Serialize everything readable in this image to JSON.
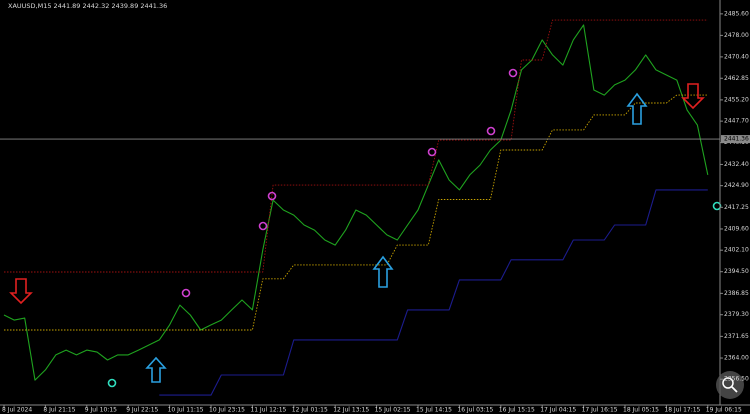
{
  "chart_data": {
    "type": "line",
    "title": "XAUUSD,M15  2441.89 2442.32 2439.89 2441.36",
    "current_price": 2441.36,
    "categories": [
      "8 Jul 2024",
      null,
      null,
      null,
      "8 Jul 21:15",
      null,
      null,
      null,
      "9 Jul 10:15",
      null,
      null,
      null,
      "9 Jul 22:15",
      null,
      null,
      null,
      "10 Jul 11:15",
      null,
      null,
      null,
      "10 Jul 23:15",
      null,
      null,
      null,
      "11 Jul 12:15",
      null,
      null,
      null,
      "12 Jul 01:15",
      null,
      null,
      null,
      "12 Jul 13:15",
      null,
      null,
      null,
      "15 Jul 02:15",
      null,
      null,
      null,
      "15 Jul 14:15",
      null,
      null,
      null,
      "16 Jul 03:15",
      null,
      null,
      null,
      "16 Jul 15:15",
      null,
      null,
      null,
      "17 Jul 04:15",
      null,
      null,
      null,
      "17 Jul 16:15",
      null,
      null,
      null,
      "18 Jul 05:15",
      null,
      null,
      null,
      "18 Jul 17:15",
      null,
      null,
      null,
      "19 Jul 06:15"
    ],
    "series": [
      {
        "color": "#1fa31f",
        "style": "solid",
        "values": [
          2379.2,
          2377.4,
          2378.1,
          2356.2,
          2359.8,
          2365.1,
          2366.8,
          2365.1,
          2366.8,
          2366.1,
          2363.3,
          2365.1,
          2365.1,
          2366.8,
          2368.6,
          2370.4,
          2375.7,
          2382.7,
          2379.2,
          2373.9,
          2375.7,
          2377.4,
          2381.0,
          2384.5,
          2381.0,
          2402.2,
          2419.8,
          2416.3,
          2414.5,
          2411.0,
          2409.2,
          2405.7,
          2403.9,
          2409.2,
          2416.3,
          2414.5,
          2411.0,
          2407.5,
          2405.7,
          2411.0,
          2416.3,
          2425.1,
          2434.0,
          2426.9,
          2423.4,
          2428.7,
          2432.2,
          2437.5,
          2441.0,
          2451.6,
          2465.8,
          2469.3,
          2476.4,
          2471.1,
          2467.5,
          2476.4,
          2481.7,
          2458.7,
          2456.9,
          2460.5,
          2462.2,
          2465.8,
          2471.1,
          2465.8,
          2464.0,
          2462.2,
          2451.6,
          2446.3,
          2428.7
        ]
      },
      {
        "color": "#a01010",
        "style": "dotted",
        "values": [
          2394.4,
          2394.4,
          2394.4,
          2394.4,
          2394.4,
          2394.4,
          2394.4,
          2394.4,
          2394.4,
          2394.4,
          2394.4,
          2394.4,
          2394.4,
          2394.4,
          2394.4,
          2394.4,
          2394.4,
          2394.4,
          2394.4,
          2394.4,
          2394.4,
          2394.4,
          2394.4,
          2394.4,
          2394.4,
          2394.4,
          2425.1,
          2425.1,
          2425.1,
          2425.1,
          2425.1,
          2425.1,
          2425.1,
          2425.1,
          2425.1,
          2425.1,
          2425.1,
          2425.1,
          2425.1,
          2425.1,
          2425.1,
          2425.1,
          2441.0,
          2441.0,
          2441.0,
          2441.0,
          2441.0,
          2441.0,
          2441.0,
          2441.0,
          2469.3,
          2469.3,
          2469.3,
          2483.4,
          2483.4,
          2483.4,
          2483.4,
          2483.4,
          2483.4,
          2483.4,
          2483.4,
          2483.4,
          2483.4,
          2483.4,
          2483.4,
          2483.4,
          2483.4,
          2483.4,
          2483.4
        ]
      },
      {
        "color": "#c9a400",
        "style": "dotted",
        "values": [
          2373.9,
          2373.9,
          2373.9,
          2373.9,
          2373.9,
          2373.9,
          2373.9,
          2373.9,
          2373.9,
          2373.9,
          2373.9,
          2373.9,
          2373.9,
          2373.9,
          2373.9,
          2373.9,
          2373.9,
          2373.9,
          2373.9,
          2373.9,
          2373.9,
          2373.9,
          2373.9,
          2373.9,
          2373.9,
          2392.0,
          2392.0,
          2392.0,
          2396.9,
          2396.9,
          2396.9,
          2396.9,
          2396.9,
          2396.9,
          2396.9,
          2396.9,
          2396.9,
          2396.9,
          2403.9,
          2403.9,
          2403.9,
          2403.9,
          2420.0,
          2420.0,
          2420.0,
          2420.0,
          2420.0,
          2420.0,
          2437.5,
          2437.5,
          2437.5,
          2437.5,
          2437.5,
          2444.6,
          2444.6,
          2444.6,
          2444.6,
          2449.9,
          2449.9,
          2449.9,
          2449.9,
          2454.1,
          2454.1,
          2454.1,
          2454.1,
          2456.9,
          2456.9,
          2456.9,
          2456.9
        ]
      },
      {
        "color": "#1c1c8e",
        "style": "solid",
        "values": [
          null,
          null,
          null,
          null,
          null,
          null,
          null,
          null,
          null,
          null,
          null,
          null,
          null,
          null,
          null,
          2350.9,
          2350.9,
          2350.9,
          2350.9,
          2350.9,
          2350.9,
          2358.0,
          2358.0,
          2358.0,
          2358.0,
          2358.0,
          2358.0,
          2358.0,
          2370.4,
          2370.4,
          2370.4,
          2370.4,
          2370.4,
          2370.4,
          2370.4,
          2370.4,
          2370.4,
          2370.4,
          2370.4,
          2381.0,
          2381.0,
          2381.0,
          2381.0,
          2381.0,
          2391.6,
          2391.6,
          2391.6,
          2391.6,
          2391.6,
          2398.7,
          2398.7,
          2398.7,
          2398.7,
          2398.7,
          2398.7,
          2405.7,
          2405.7,
          2405.7,
          2405.7,
          2411.0,
          2411.0,
          2411.0,
          2411.0,
          2423.4,
          2423.4,
          2423.4,
          2423.4,
          2423.4,
          2423.4
        ]
      }
    ],
    "ylim": [
      2347.4,
      2490.5
    ],
    "yticks": [
      {
        "value": 2485.6,
        "label": "2485.60"
      },
      {
        "value": 2478,
        "label": "2478.00"
      },
      {
        "value": 2470.4,
        "label": "2470.40"
      },
      2462.85,
      {
        "value": 2455.2,
        "label": "2455.20"
      },
      {
        "value": 2447.7,
        "label": "2447.70"
      },
      {
        "value": 2440.1,
        "label": "2440.10"
      },
      {
        "value": 2432.4,
        "label": "2432.40"
      },
      {
        "value": 2424.9,
        "label": "2424.90"
      },
      2417.25,
      {
        "value": 2409.6,
        "label": "2409.60"
      },
      {
        "value": 2402.1,
        "label": "2402.10"
      },
      {
        "value": 2394.5,
        "label": "2394.50"
      },
      2386.85,
      {
        "value": 2379.3,
        "label": "2379.30"
      },
      2371.65,
      {
        "value": 2364,
        "label": "2364.00"
      },
      {
        "value": 2356.5,
        "label": "2356.50"
      }
    ],
    "grid": false
  }
}
